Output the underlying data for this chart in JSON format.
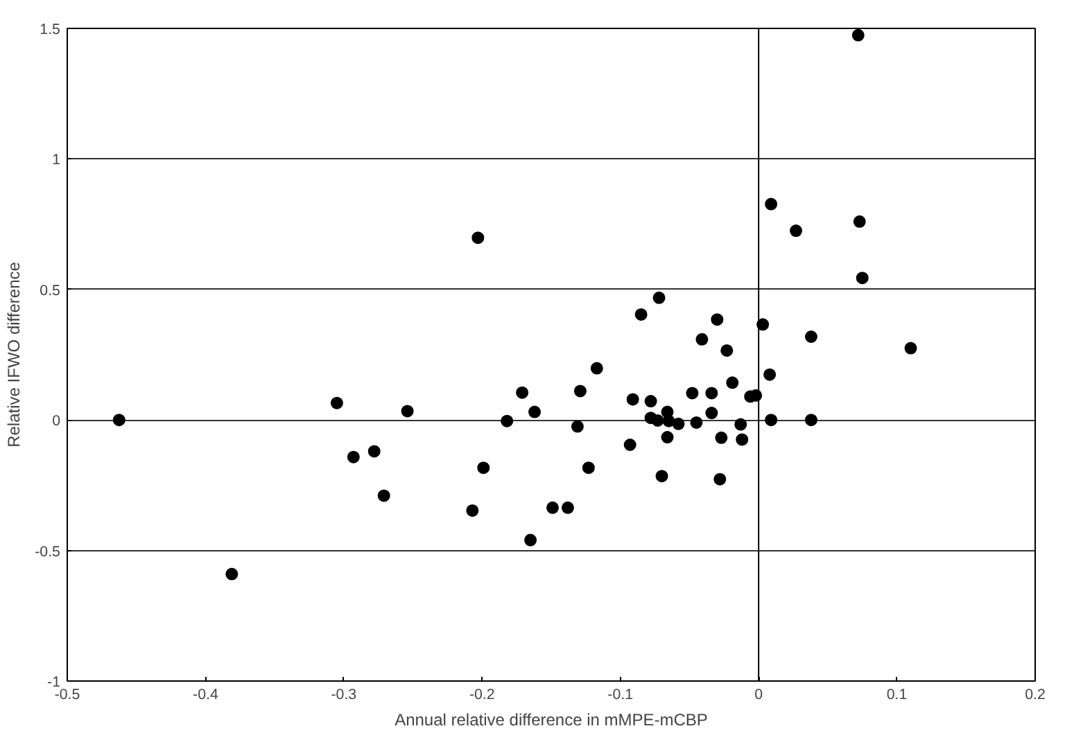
{
  "chart_data": {
    "type": "scatter",
    "xlabel": "Annual relative difference in mMPE-mCBP",
    "ylabel": "Relative IFWO difference",
    "x": [
      -0.4625,
      -0.381,
      -0.305,
      -0.293,
      -0.278,
      -0.271,
      -0.254,
      -0.203,
      -0.072,
      -0.085,
      -0.03,
      0.003,
      -0.041,
      -0.023,
      -0.117,
      0.008,
      -0.019,
      -0.171,
      -0.129,
      -0.048,
      -0.034,
      -0.091,
      -0.078,
      -0.006,
      -0.002,
      -0.162,
      -0.066,
      -0.034,
      -0.182,
      -0.078,
      -0.073,
      -0.065,
      -0.058,
      -0.045,
      0.009,
      -0.013,
      -0.131,
      -0.066,
      -0.027,
      -0.012,
      -0.093,
      -0.199,
      -0.123,
      -0.07,
      -0.028,
      -0.207,
      -0.149,
      -0.138,
      -0.165,
      0.072,
      0.009,
      0.027,
      0.073,
      0.075,
      0.11,
      0.038,
      0.038
    ],
    "values": [
      0,
      -0.59,
      0.065,
      -0.142,
      -0.12,
      -0.29,
      0.034,
      0.698,
      0.468,
      0.404,
      0.385,
      0.366,
      0.309,
      0.266,
      0.198,
      0.174,
      0.143,
      0.105,
      0.111,
      0.103,
      0.103,
      0.079,
      0.072,
      0.09,
      0.094,
      0.031,
      0.031,
      0.027,
      -0.004,
      0.008,
      -0.002,
      -0.004,
      -0.015,
      -0.01,
      0,
      -0.017,
      -0.025,
      -0.066,
      -0.068,
      -0.075,
      -0.095,
      -0.183,
      -0.183,
      -0.215,
      -0.227,
      -0.347,
      -0.336,
      -0.336,
      -0.46,
      1.474,
      0.827,
      0.725,
      0.76,
      0.544,
      0.275,
      0.319,
      0
    ],
    "color": "#000000",
    "marker": "circle",
    "xlim": [
      -0.5,
      0.2
    ],
    "xticks": [
      -0.5,
      -0.4,
      -0.3,
      -0.2,
      -0.1,
      0,
      0.1,
      0.2
    ],
    "ylim": [
      -1,
      1.5
    ],
    "yticks": [
      -1,
      -0.5,
      0,
      0.5,
      1,
      1.5
    ],
    "grid": "y",
    "ref_lines": [
      {
        "axis": "x",
        "value": 0,
        "color": "#000000"
      }
    ]
  }
}
